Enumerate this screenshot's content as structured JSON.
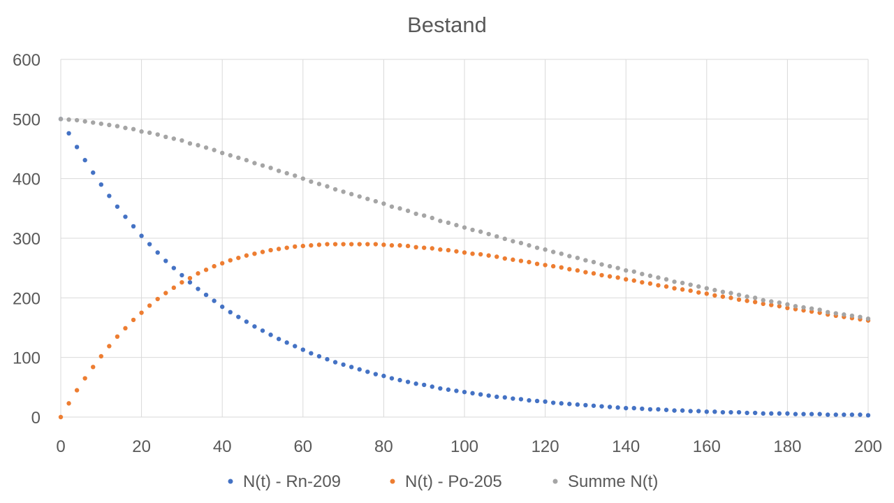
{
  "chart_data": {
    "type": "scatter",
    "title": "Bestand",
    "xlabel": "",
    "ylabel": "",
    "xlim": [
      0,
      200
    ],
    "ylim": [
      0,
      600
    ],
    "x_ticks": [
      0,
      20,
      40,
      60,
      80,
      100,
      120,
      140,
      160,
      180,
      200
    ],
    "y_ticks": [
      0,
      100,
      200,
      300,
      400,
      500,
      600
    ],
    "grid": true,
    "legend_position": "bottom",
    "x": [
      0,
      2,
      4,
      6,
      8,
      10,
      12,
      14,
      16,
      18,
      20,
      22,
      24,
      26,
      28,
      30,
      32,
      34,
      36,
      38,
      40,
      42,
      44,
      46,
      48,
      50,
      52,
      54,
      56,
      58,
      60,
      62,
      64,
      66,
      68,
      70,
      72,
      74,
      76,
      78,
      80,
      82,
      84,
      86,
      88,
      90,
      92,
      94,
      96,
      98,
      100,
      102,
      104,
      106,
      108,
      110,
      112,
      114,
      116,
      118,
      120,
      122,
      124,
      126,
      128,
      130,
      132,
      134,
      136,
      138,
      140,
      142,
      144,
      146,
      148,
      150,
      152,
      154,
      156,
      158,
      160,
      162,
      164,
      166,
      168,
      170,
      172,
      174,
      176,
      178,
      180,
      182,
      184,
      186,
      188,
      190,
      192,
      194,
      196,
      198,
      200
    ],
    "series": [
      {
        "name": "N(t) - Rn-209",
        "color": "#4472c4",
        "values": [
          500,
          476,
          453,
          431,
          410,
          390,
          371,
          353,
          336,
          320,
          304,
          290,
          276,
          262,
          250,
          238,
          226,
          215,
          205,
          195,
          185,
          176,
          168,
          160,
          152,
          145,
          138,
          131,
          125,
          119,
          113,
          107,
          102,
          97,
          92,
          88,
          84,
          80,
          76,
          72,
          69,
          65,
          62,
          59,
          56,
          54,
          51,
          48,
          46,
          44,
          42,
          40,
          38,
          36,
          34,
          33,
          31,
          30,
          28,
          27,
          26,
          24,
          23,
          22,
          21,
          20,
          19,
          18,
          17,
          16,
          15,
          15,
          14,
          13,
          13,
          12,
          11,
          11,
          10,
          10,
          9,
          9,
          8,
          8,
          8,
          7,
          7,
          6,
          6,
          6,
          6,
          5,
          5,
          5,
          5,
          4,
          4,
          4,
          4,
          4,
          3
        ]
      },
      {
        "name": "N(t) - Po-205",
        "color": "#ed7d31",
        "values": [
          0,
          23,
          45,
          65,
          84,
          102,
          119,
          135,
          149,
          163,
          175,
          187,
          198,
          208,
          217,
          226,
          233,
          241,
          247,
          253,
          258,
          263,
          267,
          271,
          274,
          277,
          280,
          282,
          284,
          286,
          287,
          288,
          289,
          290,
          290,
          290,
          290,
          290,
          290,
          290,
          289,
          288,
          288,
          287,
          285,
          284,
          283,
          281,
          280,
          278,
          276,
          274,
          273,
          271,
          269,
          266,
          264,
          262,
          260,
          257,
          255,
          253,
          251,
          248,
          246,
          243,
          241,
          238,
          236,
          234,
          231,
          229,
          226,
          224,
          221,
          219,
          216,
          214,
          212,
          209,
          207,
          204,
          202,
          200,
          197,
          195,
          193,
          190,
          188,
          186,
          183,
          181,
          179,
          177,
          175,
          172,
          170,
          168,
          166,
          164,
          162
        ]
      },
      {
        "name": "Summe N(t)",
        "color": "#a5a5a5",
        "values": [
          500,
          499,
          498,
          496,
          494,
          492,
          490,
          488,
          485,
          483,
          479,
          477,
          474,
          470,
          467,
          464,
          459,
          456,
          452,
          448,
          443,
          439,
          435,
          431,
          426,
          422,
          418,
          413,
          409,
          405,
          400,
          395,
          391,
          387,
          382,
          378,
          374,
          370,
          366,
          362,
          358,
          353,
          350,
          346,
          341,
          338,
          334,
          329,
          326,
          322,
          318,
          314,
          311,
          307,
          303,
          299,
          295,
          292,
          288,
          284,
          281,
          277,
          274,
          270,
          267,
          263,
          260,
          256,
          253,
          250,
          246,
          244,
          240,
          237,
          234,
          231,
          227,
          225,
          222,
          219,
          216,
          213,
          210,
          208,
          205,
          202,
          200,
          196,
          194,
          192,
          189,
          186,
          184,
          182,
          180,
          176,
          174,
          172,
          170,
          168,
          165
        ]
      }
    ]
  }
}
